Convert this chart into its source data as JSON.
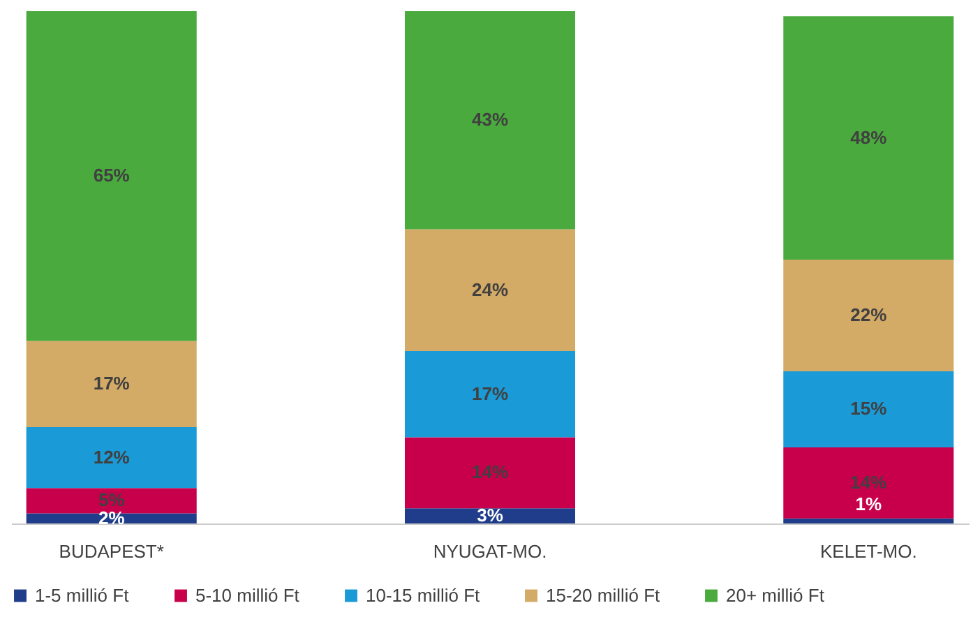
{
  "chart_data": {
    "type": "bar",
    "stacked": true,
    "legend": "bottom",
    "grid": false,
    "categories": [
      "BUDAPEST*",
      "NYUGAT-MO.",
      "KELET-MO."
    ],
    "series": [
      {
        "name": "1-5 millió Ft",
        "color": "#1f3d8a",
        "values": [
          2,
          3,
          1
        ],
        "value_labels": [
          "2%",
          "3%",
          "1%"
        ]
      },
      {
        "name": "5-10 millió Ft",
        "color": "#c8004b",
        "values": [
          5,
          14,
          14
        ],
        "value_labels": [
          "5%",
          "14%",
          "14%"
        ]
      },
      {
        "name": "10-15 millió Ft",
        "color": "#1a9ad6",
        "values": [
          12,
          17,
          15
        ],
        "value_labels": [
          "12%",
          "17%",
          "15%"
        ]
      },
      {
        "name": "15-20 millió Ft",
        "color": "#d3aa66",
        "values": [
          17,
          24,
          22
        ],
        "value_labels": [
          "17%",
          "24%",
          "22%"
        ]
      },
      {
        "name": "20+ millió Ft",
        "color": "#4aaa3e",
        "values": [
          65,
          43,
          48
        ],
        "value_labels": [
          "65%",
          "43%",
          "48%"
        ]
      }
    ]
  }
}
